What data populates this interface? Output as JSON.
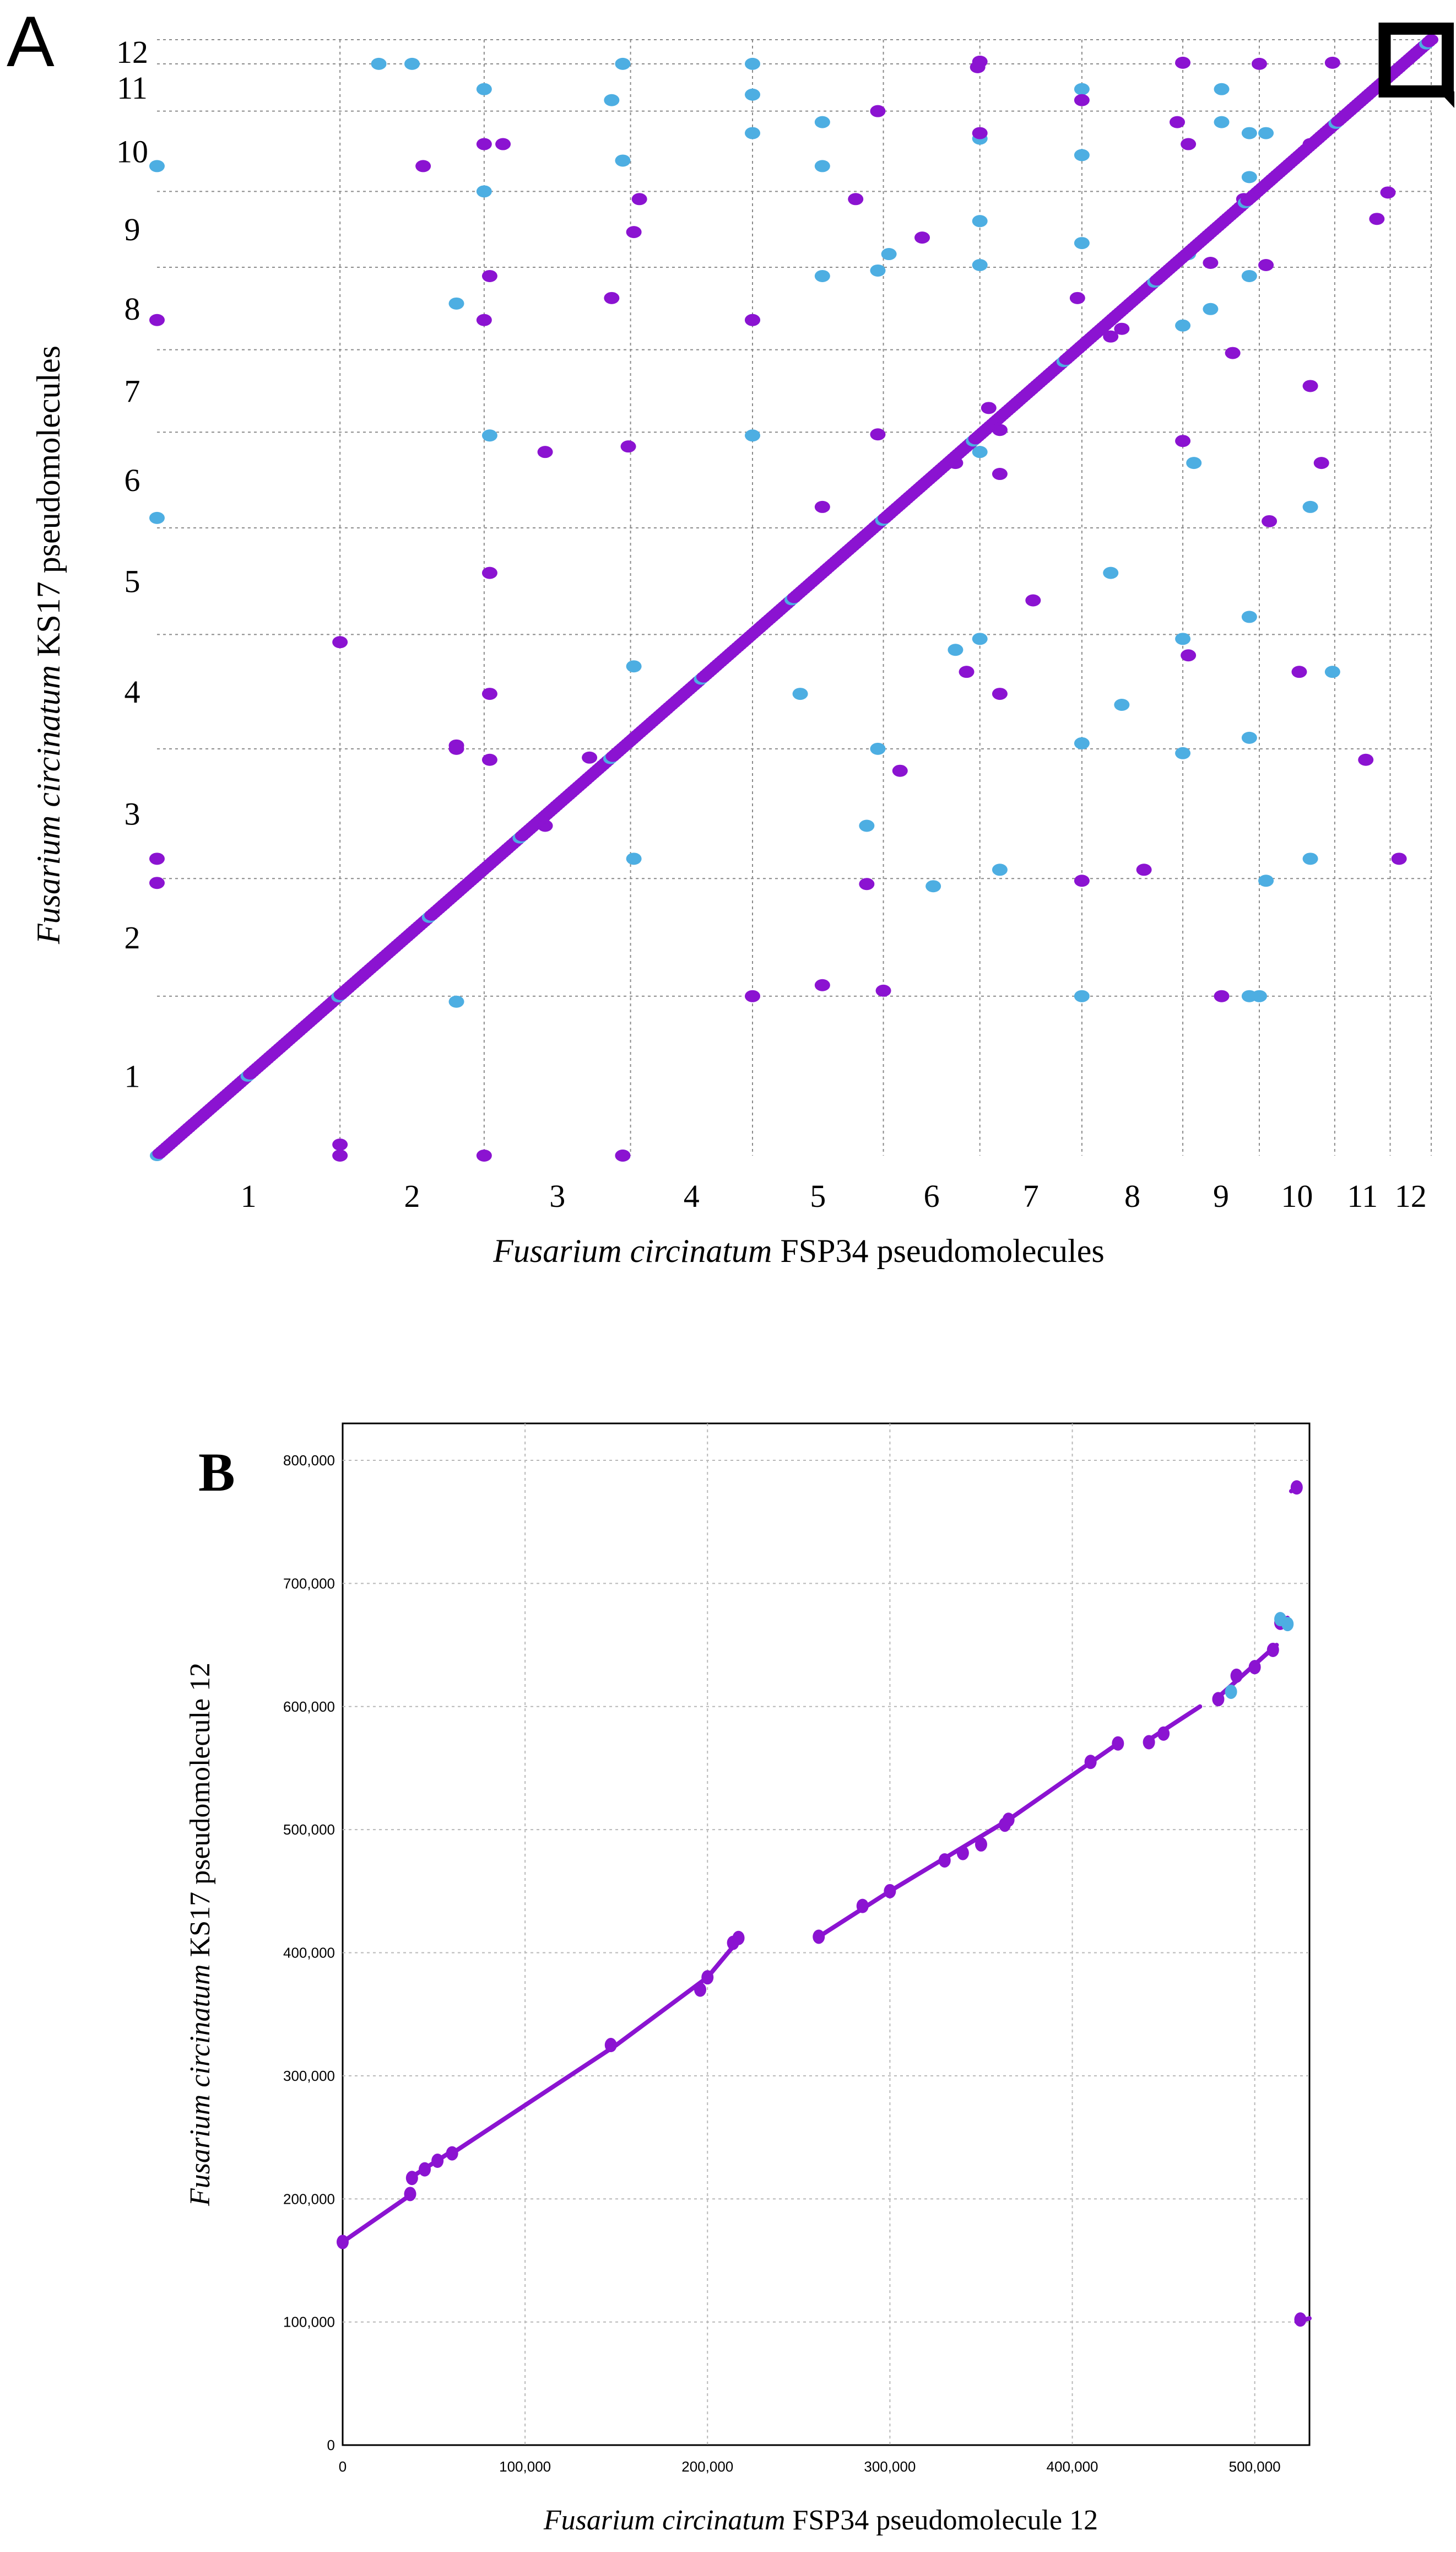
{
  "chart_data": [
    {
      "panel": "A",
      "type": "scatter",
      "title": "",
      "xlabel_italic": "Fusarium circinatum",
      "xlabel_rest": " FSP34 pseudomolecules",
      "ylabel_italic": "Fusarium circinatum",
      "ylabel_rest": " KS17 pseudomolecules",
      "x_tick_labels": [
        "1",
        "2",
        "3",
        "4",
        "5",
        "6",
        "7",
        "8",
        "9",
        "10",
        "11",
        "12"
      ],
      "y_tick_labels": [
        "1",
        "2",
        "3",
        "4",
        "5",
        "6",
        "7",
        "8",
        "9",
        "10",
        "11",
        "12"
      ],
      "x_boundaries": [
        0,
        0.165,
        0.295,
        0.427,
        0.537,
        0.655,
        0.742,
        0.834,
        0.925,
        0.994,
        1.062,
        1.112,
        1.149
      ],
      "y_boundaries": [
        0,
        0.145,
        0.252,
        0.37,
        0.474,
        0.571,
        0.658,
        0.733,
        0.808,
        0.877,
        0.95,
        0.993,
        1.015
      ],
      "x_range": [
        0,
        1.149
      ],
      "y_range": [
        0,
        1.015
      ],
      "grid": true,
      "colors": {
        "forward": "#8b13d1",
        "reverse": "#4daee2"
      },
      "highlight_region": [
        1.112,
        0.993,
        1.149,
        1.015
      ],
      "series": [
        {
          "name": "forward",
          "points": [
            [
              0.35,
              0.3
            ],
            [
              0.72,
              0.63
            ],
            [
              0.98,
              0.87
            ],
            [
              0.3,
              0.36
            ],
            [
              0.3,
              0.42
            ],
            [
              0.6,
              0.59
            ],
            [
              0.65,
              0.656
            ],
            [
              0.76,
              0.66
            ],
            [
              0.86,
              0.745
            ],
            [
              0.3,
              0.53
            ],
            [
              0.3,
              0.8
            ],
            [
              0.35,
              0.64
            ],
            [
              0.65,
              0.95
            ],
            [
              0.69,
              0.835
            ],
            [
              0.74,
              0.99
            ],
            [
              0.76,
              0.42
            ],
            [
              0.79,
              0.505
            ],
            [
              0.87,
              0.752
            ],
            [
              0.95,
              0.812
            ],
            [
              1.04,
              0.92
            ],
            [
              0.0,
              0.76
            ],
            [
              0.0,
              0.27
            ],
            [
              0.0,
              0.248
            ],
            [
              0.165,
              0.0
            ],
            [
              0.165,
              0.467
            ],
            [
              0.165,
              0.01
            ],
            [
              0.27,
              0.37
            ],
            [
              0.27,
              0.373
            ],
            [
              0.295,
              0.0
            ],
            [
              0.295,
              0.92
            ],
            [
              0.295,
              0.76
            ],
            [
              0.312,
              0.92
            ],
            [
              0.42,
              0.0
            ],
            [
              0.425,
              0.645
            ],
            [
              0.43,
              0.84
            ],
            [
              0.41,
              0.78
            ],
            [
              0.39,
              0.362
            ],
            [
              0.435,
              0.87
            ],
            [
              0.537,
              0.76
            ],
            [
              0.537,
              0.145
            ],
            [
              0.63,
              0.87
            ],
            [
              0.64,
              0.247
            ],
            [
              0.655,
              0.15
            ],
            [
              0.67,
              0.35
            ],
            [
              0.73,
              0.44
            ],
            [
              0.742,
              0.995
            ],
            [
              0.742,
              0.93
            ],
            [
              0.75,
              0.68
            ],
            [
              0.76,
              0.62
            ],
            [
              0.83,
              0.78
            ],
            [
              0.834,
              0.96
            ],
            [
              0.834,
              0.25
            ],
            [
              0.89,
              0.26
            ],
            [
              0.93,
              0.92
            ],
            [
              0.925,
              0.994
            ],
            [
              0.96,
              0.145
            ],
            [
              0.925,
              0.65
            ],
            [
              0.97,
              0.73
            ],
            [
              0.994,
              0.993
            ],
            [
              1.0,
              0.81
            ],
            [
              1.003,
              0.577
            ],
            [
              1.04,
              0.7
            ],
            [
              1.05,
              0.63
            ],
            [
              1.06,
              0.994
            ],
            [
              1.1,
              0.852
            ],
            [
              1.12,
              0.27
            ],
            [
              1.09,
              0.36
            ],
            [
              1.11,
              0.876
            ],
            [
              1.03,
              0.44
            ],
            [
              0.93,
              0.455
            ],
            [
              0.92,
              0.94
            ],
            [
              0.6,
              0.155
            ],
            [
              0.24,
              0.9
            ]
          ]
        },
        {
          "name": "reverse",
          "points": [
            [
              0.0,
              0.9
            ],
            [
              0.0,
              0.58
            ],
            [
              0.27,
              0.14
            ],
            [
              0.27,
              0.775
            ],
            [
              0.295,
              0.877
            ],
            [
              0.3,
              0.655
            ],
            [
              0.23,
              0.993
            ],
            [
              0.2,
              0.993
            ],
            [
              0.295,
              0.97
            ],
            [
              0.42,
              0.0
            ],
            [
              0.43,
              0.27
            ],
            [
              0.43,
              0.445
            ],
            [
              0.42,
              0.905
            ],
            [
              0.42,
              0.993
            ],
            [
              0.41,
              0.96
            ],
            [
              0.537,
              0.993
            ],
            [
              0.537,
              0.965
            ],
            [
              0.537,
              0.93
            ],
            [
              0.537,
              0.655
            ],
            [
              0.537,
              0.76
            ],
            [
              0.58,
              0.42
            ],
            [
              0.64,
              0.3
            ],
            [
              0.65,
              0.37
            ],
            [
              0.65,
              0.805
            ],
            [
              0.66,
              0.82
            ],
            [
              0.7,
              0.245
            ],
            [
              0.72,
              0.46
            ],
            [
              0.742,
              0.47
            ],
            [
              0.742,
              0.81
            ],
            [
              0.742,
              0.925
            ],
            [
              0.742,
              0.85
            ],
            [
              0.742,
              0.64
            ],
            [
              0.76,
              0.26
            ],
            [
              0.834,
              0.145
            ],
            [
              0.834,
              0.375
            ],
            [
              0.834,
              0.83
            ],
            [
              0.834,
              0.91
            ],
            [
              0.834,
              0.97
            ],
            [
              0.86,
              0.53
            ],
            [
              0.87,
              0.41
            ],
            [
              0.925,
              0.47
            ],
            [
              0.93,
              0.82
            ],
            [
              0.935,
              0.63
            ],
            [
              0.925,
              0.366
            ],
            [
              0.925,
              0.755
            ],
            [
              0.985,
              0.145
            ],
            [
              0.985,
              0.93
            ],
            [
              0.985,
              0.89
            ],
            [
              0.985,
              0.8
            ],
            [
              0.985,
              0.49
            ],
            [
              0.985,
              0.38
            ],
            [
              1.0,
              0.93
            ],
            [
              1.0,
              0.25
            ],
            [
              1.04,
              0.59
            ],
            [
              1.04,
              0.27
            ],
            [
              1.06,
              0.44
            ],
            [
              0.994,
              0.145
            ],
            [
              0.95,
              0.77
            ],
            [
              0.96,
              0.97
            ],
            [
              0.96,
              0.94
            ],
            [
              0.6,
              0.8
            ],
            [
              0.6,
              0.9
            ],
            [
              0.6,
              0.94
            ]
          ]
        }
      ]
    },
    {
      "panel": "B",
      "type": "line",
      "title": "",
      "xlabel_italic": "Fusarium circinatum",
      "xlabel_rest": " FSP34 pseudomolecule 12",
      "ylabel_italic": "Fusarium circinatum",
      "ylabel_rest": " KS17 pseudomolecule 12",
      "xlim": [
        0,
        530000
      ],
      "ylim": [
        0,
        830000
      ],
      "x_ticks": [
        0,
        100000,
        200000,
        300000,
        400000,
        500000
      ],
      "y_ticks": [
        0,
        100000,
        200000,
        300000,
        400000,
        500000,
        600000,
        700000,
        800000
      ],
      "x_tick_labels": [
        "0",
        "100,000",
        "200,000",
        "300,000",
        "400,000",
        "500,000"
      ],
      "y_tick_labels": [
        "0",
        "100,000",
        "200,000",
        "300,000",
        "400,000",
        "500,000",
        "600,000",
        "700,000",
        "800,000"
      ],
      "grid": true,
      "colors": {
        "forward": "#8b13d1",
        "reverse": "#4daee2"
      },
      "series": [
        {
          "name": "forward",
          "segments": [
            [
              [
                0,
                165000
              ],
              [
                36000,
                202000
              ]
            ],
            [
              [
                37000,
                217000
              ],
              [
                58000,
                237000
              ]
            ],
            [
              [
                60000,
                237000
              ],
              [
                150000,
                325000
              ]
            ],
            [
              [
                150000,
                325000
              ],
              [
                200000,
                380000
              ]
            ],
            [
              [
                200000,
                380000
              ],
              [
                218000,
                412000
              ]
            ],
            [
              [
                260000,
                412000
              ],
              [
                300000,
                450000
              ]
            ],
            [
              [
                300000,
                450000
              ],
              [
                365000,
                508000
              ]
            ],
            [
              [
                365000,
                508000
              ],
              [
                425000,
                570000
              ]
            ],
            [
              [
                440000,
                571000
              ],
              [
                470000,
                600000
              ]
            ],
            [
              [
                478000,
                605000
              ],
              [
                512000,
                650000
              ]
            ],
            [
              [
                513000,
                668000
              ],
              [
                518000,
                672000
              ]
            ],
            [
              [
                520000,
                775000
              ],
              [
                525000,
                779000
              ]
            ],
            [
              [
                523000,
                100000
              ],
              [
                530000,
                103000
              ]
            ]
          ],
          "points": [
            [
              0,
              165000
            ],
            [
              37000,
              204000
            ],
            [
              38000,
              217000
            ],
            [
              45000,
              224000
            ],
            [
              52000,
              231000
            ],
            [
              60000,
              237000
            ],
            [
              147000,
              325000
            ],
            [
              196000,
              370000
            ],
            [
              200000,
              380000
            ],
            [
              214000,
              408000
            ],
            [
              217000,
              412000
            ],
            [
              261000,
              413000
            ],
            [
              285000,
              438000
            ],
            [
              300000,
              450000
            ],
            [
              330000,
              475000
            ],
            [
              340000,
              481000
            ],
            [
              350000,
              488000
            ],
            [
              363000,
              504000
            ],
            [
              365000,
              508000
            ],
            [
              410000,
              555000
            ],
            [
              425000,
              570000
            ],
            [
              442000,
              571000
            ],
            [
              450000,
              578000
            ],
            [
              480000,
              606000
            ],
            [
              490000,
              625000
            ],
            [
              500000,
              632000
            ],
            [
              510000,
              646000
            ],
            [
              514000,
              668000
            ],
            [
              523000,
              778000
            ],
            [
              525000,
              102000
            ]
          ]
        },
        {
          "name": "reverse",
          "points": [
            [
              487000,
              612000
            ],
            [
              518000,
              667000
            ],
            [
              514000,
              671000
            ]
          ]
        }
      ]
    }
  ],
  "panels": {
    "a_letter": "A",
    "b_letter": "B"
  }
}
